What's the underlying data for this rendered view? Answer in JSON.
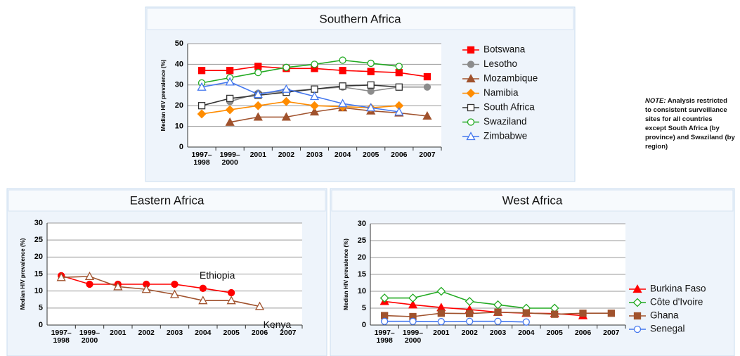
{
  "chart_data": [
    {
      "type": "line",
      "title": "Southern Africa",
      "y_label": "Median HIV prevalence (%)",
      "categories": [
        "1997–1998",
        "1999–2000",
        "2001",
        "2002",
        "2003",
        "2004",
        "2005",
        "2006",
        "2007"
      ],
      "ylim": [
        0,
        50
      ],
      "yticks": [
        0,
        10,
        20,
        30,
        40,
        50
      ],
      "grid": true,
      "legend": "right",
      "series": [
        {
          "name": "Botswana",
          "color": "#ff0000",
          "marker": "square",
          "filled": true,
          "values": [
            37,
            37,
            39,
            38,
            38,
            37,
            36.5,
            36,
            34
          ]
        },
        {
          "name": "Lesotho",
          "color": "#8c8c8c",
          "marker": "circle",
          "filled": true,
          "values": [
            null,
            22,
            26,
            27,
            28,
            29,
            27,
            29,
            29
          ]
        },
        {
          "name": "Mozambique",
          "color": "#a0522d",
          "marker": "triangle",
          "filled": true,
          "values": [
            null,
            12,
            14.5,
            14.5,
            17,
            19,
            17.5,
            16.5,
            15
          ]
        },
        {
          "name": "Namibia",
          "color": "#ff8c00",
          "marker": "diamond",
          "filled": true,
          "values": [
            16,
            18,
            20,
            22,
            20,
            19.5,
            19,
            20,
            null
          ]
        },
        {
          "name": "South Africa",
          "color": "#333333",
          "marker": "square",
          "filled": false,
          "values": [
            20,
            23.5,
            25,
            26.5,
            28,
            29.5,
            30,
            29,
            null
          ]
        },
        {
          "name": "Swaziland",
          "color": "#22aa22",
          "marker": "circle",
          "filled": false,
          "values": [
            31,
            33.5,
            36,
            38.5,
            40,
            42,
            40.5,
            39,
            null
          ]
        },
        {
          "name": "Zimbabwe",
          "color": "#4477ee",
          "marker": "triangle",
          "filled": false,
          "values": [
            29,
            31.5,
            25.5,
            28,
            24.5,
            21,
            19,
            17,
            null
          ]
        }
      ]
    },
    {
      "type": "line",
      "title": "Eastern Africa",
      "y_label": "Median HIV prevalence (%)",
      "categories": [
        "1997–1998",
        "1999–2000",
        "2001",
        "2002",
        "2003",
        "2004",
        "2005",
        "2006",
        "2007"
      ],
      "ylim": [
        0,
        30
      ],
      "yticks": [
        0,
        5,
        10,
        15,
        20,
        25,
        30
      ],
      "grid": true,
      "legend": "inline",
      "series": [
        {
          "name": "Ethiopia",
          "color": "#ff0000",
          "marker": "circle",
          "filled": true,
          "values": [
            14.5,
            12,
            12,
            12,
            12,
            10.8,
            9.5,
            null,
            null
          ]
        },
        {
          "name": "Kenya",
          "color": "#a0522d",
          "marker": "triangle",
          "filled": false,
          "values": [
            14,
            14.3,
            11.3,
            10.5,
            9,
            7.2,
            7.2,
            5.5,
            null
          ]
        }
      ]
    },
    {
      "type": "line",
      "title": "West Africa",
      "y_label": "Median HIV prevalence (%)",
      "categories": [
        "1997–1998",
        "1999–2000",
        "2001",
        "2002",
        "2003",
        "2004",
        "2005",
        "2006",
        "2007"
      ],
      "ylim": [
        0,
        30
      ],
      "yticks": [
        0,
        5,
        10,
        15,
        20,
        25,
        30
      ],
      "grid": true,
      "legend": "right",
      "series": [
        {
          "name": "Burkina Faso",
          "color": "#ff0000",
          "marker": "triangle",
          "filled": true,
          "values": [
            7,
            6,
            5.2,
            4.6,
            3.8,
            3.5,
            3.4,
            2.8,
            null
          ]
        },
        {
          "name": "Côte d'Ivoire",
          "color": "#22aa22",
          "marker": "diamond",
          "filled": false,
          "values": [
            8,
            8,
            10,
            7,
            6,
            5,
            5,
            null,
            null
          ]
        },
        {
          "name": "Ghana",
          "color": "#a0522d",
          "marker": "square",
          "filled": true,
          "values": [
            2.8,
            2.5,
            3.5,
            3.4,
            3.8,
            3.6,
            3.2,
            3.5,
            3.5
          ]
        },
        {
          "name": "Senegal",
          "color": "#4477ee",
          "marker": "circle",
          "filled": false,
          "values": [
            1.1,
            1.1,
            1.0,
            1.1,
            1.1,
            0.9,
            null,
            null,
            null
          ]
        }
      ]
    }
  ],
  "note_label": "NOTE:",
  "note": "Analysis restricted to consistent surveillance sites for all countries except South Africa (by province) and Swaziland (by region)"
}
